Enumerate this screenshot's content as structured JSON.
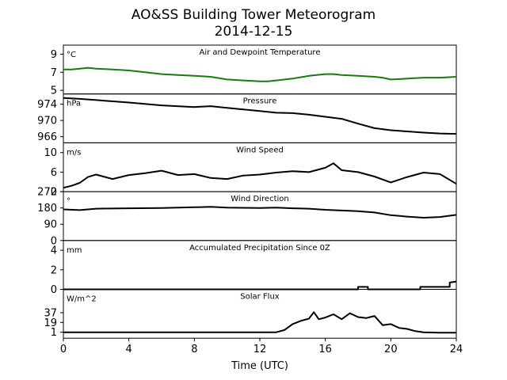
{
  "title": "AO&SS Building Tower Meteorogram",
  "subtitle": "2014-12-15",
  "chart_data": {
    "type": "line",
    "xlabel": "Time (UTC)",
    "xlim": [
      0,
      24
    ],
    "xticks": [
      0,
      4,
      8,
      12,
      16,
      20,
      24
    ],
    "panels": [
      {
        "title": "Air and Dewpoint Temperature",
        "unit": "°C",
        "ylim": [
          4.6,
          10.0
        ],
        "yticks": [
          5,
          7,
          9
        ],
        "color": "#1a7a10",
        "x": [
          0,
          0.5,
          1,
          1.5,
          2,
          3,
          4,
          5,
          6,
          7,
          8,
          9,
          10,
          11,
          12,
          12.5,
          13,
          14,
          15,
          16,
          16.5,
          17,
          18,
          19,
          19.5,
          20,
          21,
          22,
          23,
          24
        ],
        "y": [
          7.3,
          7.3,
          7.4,
          7.5,
          7.4,
          7.3,
          7.2,
          7.0,
          6.8,
          6.7,
          6.6,
          6.5,
          6.2,
          6.1,
          6.0,
          6.0,
          6.1,
          6.3,
          6.6,
          6.8,
          6.8,
          6.7,
          6.6,
          6.5,
          6.4,
          6.2,
          6.3,
          6.4,
          6.4,
          6.5
        ]
      },
      {
        "title": "Pressure",
        "unit": "hPa",
        "ylim": [
          964.5,
          976.5
        ],
        "yticks": [
          966,
          970,
          974
        ],
        "color": "#000000",
        "x": [
          0,
          1,
          2,
          4,
          6,
          8,
          9,
          10,
          11,
          12,
          13,
          14,
          15,
          16,
          17,
          18,
          19,
          20,
          21,
          22,
          23,
          24
        ],
        "y": [
          975.5,
          975.3,
          975.0,
          974.4,
          973.7,
          973.3,
          973.5,
          973.1,
          972.7,
          972.3,
          971.9,
          971.8,
          971.4,
          970.9,
          970.4,
          969.2,
          968.1,
          967.6,
          967.3,
          967.0,
          966.8,
          966.7
        ]
      },
      {
        "title": "Wind Speed",
        "unit": "m/s",
        "ylim": [
          2,
          12
        ],
        "yticks": [
          2,
          6,
          10
        ],
        "color": "#000000",
        "x": [
          0,
          0.5,
          1,
          1.5,
          2,
          3,
          4,
          5,
          6,
          7,
          8,
          9,
          10,
          11,
          12,
          13,
          14,
          15,
          16,
          16.5,
          17,
          18,
          19,
          20,
          21,
          22,
          23,
          24
        ],
        "y": [
          2.8,
          3.2,
          3.8,
          5.0,
          5.5,
          4.6,
          5.4,
          5.8,
          6.3,
          5.4,
          5.6,
          4.8,
          4.6,
          5.3,
          5.5,
          5.9,
          6.2,
          6.0,
          6.9,
          7.8,
          6.4,
          6.0,
          5.1,
          3.9,
          5.0,
          5.9,
          5.6,
          3.6
        ]
      },
      {
        "title": "Wind Direction",
        "unit": "°",
        "ylim": [
          0,
          270
        ],
        "yticks": [
          0,
          90,
          180,
          270
        ],
        "color": "#000000",
        "x": [
          0,
          1,
          2,
          4,
          6,
          8,
          9,
          10,
          12,
          13,
          14,
          15,
          16,
          17,
          18,
          19,
          20,
          21,
          22,
          23,
          24
        ],
        "y": [
          172,
          168,
          176,
          178,
          180,
          184,
          186,
          182,
          180,
          182,
          178,
          176,
          170,
          166,
          162,
          155,
          140,
          132,
          126,
          130,
          142
        ]
      },
      {
        "title": "Accumulated Precipitation Since 0Z",
        "unit": "mm",
        "ylim": [
          0,
          5
        ],
        "yticks": [
          0,
          2,
          4
        ],
        "color": "#000000",
        "x": [
          0,
          18.0,
          18.0,
          18.6,
          18.6,
          21.8,
          21.8,
          23.6,
          23.6,
          24
        ],
        "y": [
          0,
          0,
          0.25,
          0.25,
          0,
          0,
          0.25,
          0.25,
          0.7,
          0.8
        ]
      },
      {
        "title": "Solar Flux",
        "unit": "W/m^2",
        "ylim": [
          -10,
          80
        ],
        "yticks": [
          1,
          19,
          37
        ],
        "color": "#000000",
        "x": [
          0,
          12,
          13,
          13.5,
          14,
          14.5,
          15,
          15.3,
          15.6,
          16,
          16.5,
          17,
          17.5,
          18,
          18.5,
          19,
          19.5,
          20,
          20.5,
          21,
          21.5,
          22,
          23,
          24
        ],
        "y": [
          1,
          1,
          1,
          5,
          16,
          22,
          26,
          38,
          25,
          28,
          34,
          25,
          36,
          29,
          27,
          31,
          14,
          16,
          9,
          7,
          3,
          1,
          0,
          0
        ]
      }
    ]
  }
}
